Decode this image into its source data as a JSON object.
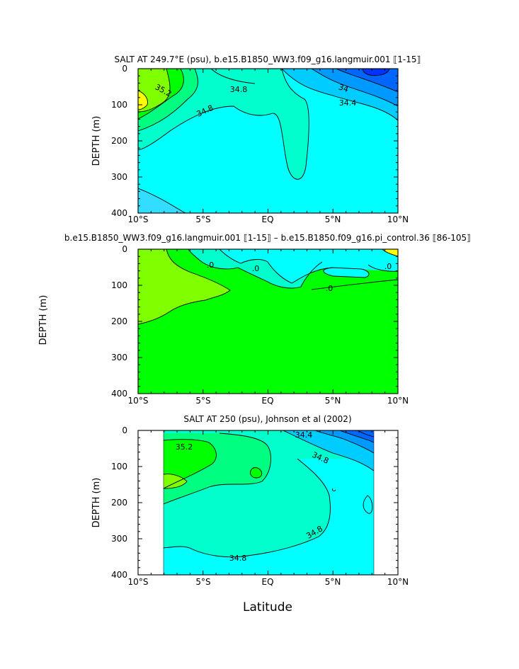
{
  "figure": {
    "shared_ylabel": "DEPTH (m)",
    "xlabel": "Latitude"
  },
  "colors": {
    "cyan": "#00ffff",
    "aquamarine": "#00ffcc",
    "light_green": "#00ff80",
    "green": "#00ff00",
    "yellow_green": "#80ff00",
    "yellow": "#ffff00",
    "sky": "#00ccff",
    "mid_blue": "#0099ff",
    "blue": "#0066ff",
    "dark_blue": "#0033ff",
    "light_blue": "#33ddff"
  },
  "chart_data": [
    {
      "type": "contour",
      "title": "SALT AT 249.7°E (psu), b.e15.B1850_WW3.f09_g16.langmuir.001 ⟦1-15⟧",
      "ylabel": "DEPTH (m)",
      "xlabel": "",
      "xlim": [
        -10,
        10
      ],
      "ylim": [
        400,
        0
      ],
      "x_ticks": [
        -10,
        -5,
        0,
        5,
        10
      ],
      "x_tick_labels": [
        "10°S",
        "5°S",
        "EQ",
        "5°N",
        "10°N"
      ],
      "y_ticks": [
        0,
        100,
        200,
        300,
        400
      ],
      "y_tick_labels": [
        "0",
        "100",
        "200",
        "300",
        "400"
      ],
      "contour_labels": [
        {
          "text": "35.2",
          "x": -7.5,
          "y": 75
        },
        {
          "text": "34.8",
          "x": -2.0,
          "y": 60
        },
        {
          "text": "34.8",
          "x": -4.8,
          "y": 118
        },
        {
          "text": "34",
          "x": 5.8,
          "y": 58
        },
        {
          "text": "34.4",
          "x": 6.5,
          "y": 92
        }
      ]
    },
    {
      "type": "contour",
      "title": "b.e15.B1850_WW3.f09_g16.langmuir.001 ⟦1-15⟧ – b.e15.B1850.f09_g16.pi_control.36 ⟦86-105⟧",
      "ylabel": "",
      "xlabel": "",
      "xlim": [
        -10,
        10
      ],
      "ylim": [
        400,
        0
      ],
      "x_ticks": [
        -10,
        -5,
        0,
        5,
        10
      ],
      "x_tick_labels": [
        "10°S",
        "5°S",
        "EQ",
        "5°N",
        "10°N"
      ],
      "y_ticks": [
        0,
        100,
        200,
        300,
        400
      ],
      "y_tick_labels": [
        "0",
        "100",
        "200",
        "300",
        "400"
      ],
      "contour_labels": [
        {
          "text": ".0",
          "x": -4.5,
          "y": 45
        },
        {
          "text": ".0",
          "x": -0.8,
          "y": 55
        },
        {
          "text": ".0",
          "x": 4.8,
          "y": 110
        },
        {
          "text": ".0",
          "x": 9.3,
          "y": 50
        }
      ]
    },
    {
      "type": "contour",
      "title": "SALT AT 250 (psu), Johnson et al (2002)",
      "ylabel": "DEPTH (m)",
      "xlabel": "Latitude",
      "xlim": [
        -10,
        10
      ],
      "ylim": [
        400,
        0
      ],
      "data_extent_x": [
        -8,
        8.2
      ],
      "x_ticks": [
        -10,
        -5,
        0,
        5,
        10
      ],
      "x_tick_labels": [
        "10°S",
        "5°S",
        "EQ",
        "5°N",
        "10°N"
      ],
      "y_ticks": [
        0,
        100,
        200,
        300,
        400
      ],
      "y_tick_labels": [
        "0",
        "100",
        "200",
        "300",
        "400"
      ],
      "contour_labels": [
        {
          "text": "35.2",
          "x": -5.2,
          "y": 45
        },
        {
          "text": "34.4",
          "x": 2.8,
          "y": 10
        },
        {
          "text": "34.8",
          "x": 4.0,
          "y": 72
        },
        {
          "text": "34.8",
          "x": 3.7,
          "y": 282
        },
        {
          "text": "34.8",
          "x": -2.3,
          "y": 355
        }
      ]
    }
  ]
}
